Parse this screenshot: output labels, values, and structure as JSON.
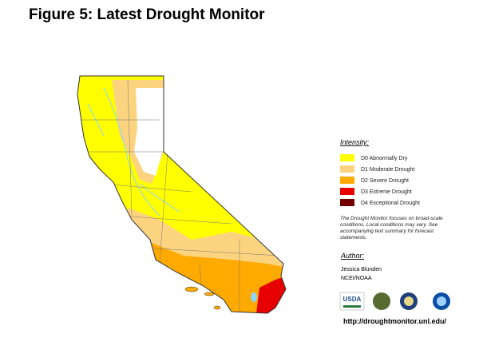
{
  "header": {
    "title": "Figure 5: Latest Drought Monitor"
  },
  "legend": {
    "heading": "Intensity:",
    "items": [
      {
        "label": "D0 Abnormally Dry",
        "color": "#ffff00"
      },
      {
        "label": "D1 Moderate Drought",
        "color": "#fcd37f"
      },
      {
        "label": "D2 Severe Drought",
        "color": "#ffaa00"
      },
      {
        "label": "D3 Extreme Drought",
        "color": "#e60000"
      },
      {
        "label": "D4 Exceptional Drought",
        "color": "#730000"
      }
    ]
  },
  "note": "The Drought Monitor focuses on broad-scale conditions. Local conditions may vary. See accompanying text summary for forecast statements.",
  "author": {
    "heading": "Author:",
    "name": "Jessica Blunden",
    "org": "NCEI/NOAA"
  },
  "logos": [
    "USDA"
  ],
  "url": "http://droughtmonitor.unl.edu/"
}
